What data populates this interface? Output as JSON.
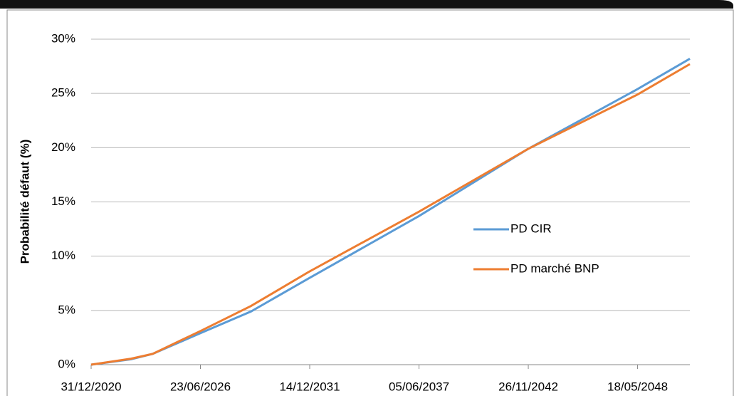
{
  "chart_data": {
    "type": "line",
    "y_label": "Probabilité défaut (%)",
    "x": [
      "2020-12-31",
      "2023-01-01",
      "2024-02-01",
      "2026-06-23",
      "2029-01-01",
      "2031-12-14",
      "2037-06-05",
      "2042-11-26",
      "2048-05-18",
      "2050-12-31"
    ],
    "series": [
      {
        "name": "PD CIR",
        "color": "#5b9bd5",
        "values": [
          0,
          0.5,
          1.0,
          2.9,
          4.9,
          8.0,
          13.7,
          19.9,
          25.4,
          28.2
        ]
      },
      {
        "name": "PD marché BNP",
        "color": "#ed7d31",
        "values": [
          0,
          0.55,
          1.0,
          3.1,
          5.4,
          8.6,
          14.1,
          19.9,
          24.9,
          27.7
        ]
      }
    ],
    "xlim": [
      "2020-12-31",
      "2050-12-31"
    ],
    "xticks": [
      {
        "value": "2020-12-31",
        "label": "31/12/2020"
      },
      {
        "value": "2026-06-23",
        "label": "23/06/2026"
      },
      {
        "value": "2031-12-14",
        "label": "14/12/2031"
      },
      {
        "value": "2037-06-05",
        "label": "05/06/2037"
      },
      {
        "value": "2042-11-26",
        "label": "26/11/2042"
      },
      {
        "value": "2048-05-18",
        "label": "18/05/2048"
      }
    ],
    "ylim": [
      0,
      30
    ],
    "yticks": [
      {
        "value": 0,
        "label": "0%"
      },
      {
        "value": 5,
        "label": "5%"
      },
      {
        "value": 10,
        "label": "10%"
      },
      {
        "value": 15,
        "label": "15%"
      },
      {
        "value": 20,
        "label": "20%"
      },
      {
        "value": 25,
        "label": "25%"
      },
      {
        "value": 30,
        "label": "30%"
      }
    ],
    "grid": true
  }
}
